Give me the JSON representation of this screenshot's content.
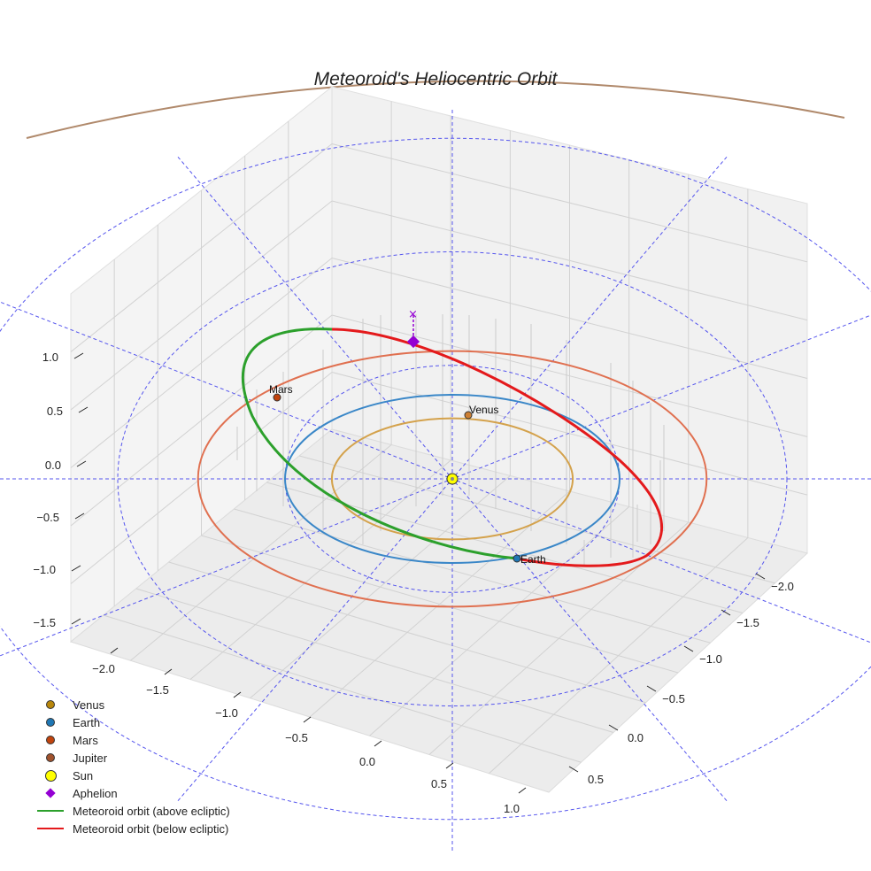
{
  "chart_data": {
    "type": "scatter",
    "subtype": "3d-orbit",
    "title": "Meteoroid's Heliocentric Orbit",
    "x_ticks": [
      "−2.0",
      "−1.5",
      "−1.0",
      "−0.5",
      "0.0",
      "0.5",
      "1.0"
    ],
    "y_ticks": [
      "−2.0",
      "−1.5",
      "−1.0",
      "−0.5",
      "0.0",
      "0.5"
    ],
    "z_ticks": [
      "1.0",
      "0.5",
      "0.0",
      "−0.5",
      "−1.0",
      "−1.5"
    ],
    "grid": true,
    "legend": {
      "position": "bottom-left",
      "entries": [
        {
          "label": "Venus",
          "color": "#b8860b",
          "marker": "circle"
        },
        {
          "label": "Earth",
          "color": "#1f77b4",
          "marker": "circle"
        },
        {
          "label": "Mars",
          "color": "#c1440e",
          "marker": "circle"
        },
        {
          "label": "Jupiter",
          "color": "#a0522d",
          "marker": "circle"
        },
        {
          "label": "Sun",
          "color": "#ffff00",
          "marker": "sun"
        },
        {
          "label": "Aphelion",
          "color": "#9400d3",
          "marker": "diamond"
        },
        {
          "label": "Meteoroid orbit (above ecliptic)",
          "color": "#2ca02c",
          "marker": "line"
        },
        {
          "label": "Meteoroid orbit (below ecliptic)",
          "color": "#e41a1c",
          "marker": "line"
        }
      ]
    },
    "planet_orbits": [
      {
        "name": "Venus",
        "radius_au": 0.72,
        "color": "#d4a24c"
      },
      {
        "name": "Earth",
        "radius_au": 1.0,
        "color": "#3a87c8"
      },
      {
        "name": "Mars",
        "radius_au": 1.52,
        "color": "#e07050"
      },
      {
        "name": "Jupiter",
        "radius_au": 5.2,
        "color": "#b0896b"
      }
    ],
    "planet_labels": [
      {
        "name": "Venus",
        "color": "#cd7f32"
      },
      {
        "name": "Earth",
        "color": "#1f77b4"
      },
      {
        "name": "Mars",
        "color": "#c1440e"
      }
    ],
    "sun": {
      "x": 0,
      "y": 0,
      "z": 0
    },
    "meteoroid_orbit": {
      "perihelion_au": 1.0,
      "aphelion_au": 1.6,
      "above_color": "#2ca02c",
      "below_color": "#e41a1c"
    },
    "aphelion_marker": {
      "color": "#9400d3",
      "z": 0.35
    },
    "reference_circles_au": [
      1.0,
      2.0,
      3.0
    ],
    "reference_color": "#5555ee"
  }
}
